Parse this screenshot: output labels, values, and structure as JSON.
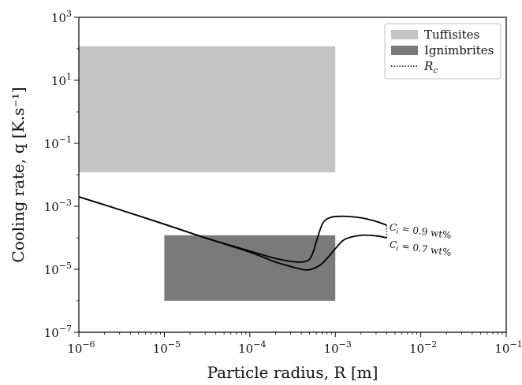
{
  "chart_data": {
    "type": "line",
    "xlabel": "Particle radius, R [m]",
    "ylabel": "Cooling rate, q [K.s⁻¹]",
    "xscale": "log",
    "yscale": "log",
    "xlim": [
      1e-06,
      0.1
    ],
    "ylim": [
      1e-07,
      1000
    ],
    "grid": false,
    "legend_position": "top-right",
    "x_ticks": [
      {
        "value": 1e-06,
        "base": "10",
        "exp": "−6"
      },
      {
        "value": 1e-05,
        "base": "10",
        "exp": "−5"
      },
      {
        "value": 0.0001,
        "base": "10",
        "exp": "−4"
      },
      {
        "value": 0.001,
        "base": "10",
        "exp": "−3"
      },
      {
        "value": 0.01,
        "base": "10",
        "exp": "−2"
      },
      {
        "value": 0.1,
        "base": "10",
        "exp": "−1"
      }
    ],
    "y_ticks": [
      {
        "value": 1e-07,
        "base": "10",
        "exp": "−7"
      },
      {
        "value": 1e-05,
        "base": "10",
        "exp": "−5"
      },
      {
        "value": 0.001,
        "base": "10",
        "exp": "−3"
      },
      {
        "value": 0.1,
        "base": "10",
        "exp": "−1"
      },
      {
        "value": 10,
        "base": "10",
        "exp": "1"
      },
      {
        "value": 1000,
        "base": "10",
        "exp": "3"
      }
    ],
    "regions": [
      {
        "name": "Tuffisites",
        "x": [
          1e-06,
          0.001
        ],
        "y": [
          0.012,
          120
        ],
        "color": "#c4c4c4"
      },
      {
        "name": "Ignimbrites",
        "x": [
          1e-05,
          0.001
        ],
        "y": [
          1e-06,
          0.00012
        ],
        "color": "#7a7a7a"
      }
    ],
    "series": [
      {
        "name": "C_i = 0.9 wt%",
        "color": "#000000",
        "points": [
          [
            1e-06,
            0.002
          ],
          [
            3e-06,
            0.00078
          ],
          [
            1e-05,
            0.00027
          ],
          [
            3e-05,
            0.0001
          ],
          [
            0.0001,
            3.8e-05
          ],
          [
            0.0002,
            2.2e-05
          ],
          [
            0.00035,
            1.7e-05
          ],
          [
            0.00048,
            1.9e-05
          ],
          [
            0.00055,
            3.5e-05
          ],
          [
            0.00062,
            0.0001
          ],
          [
            0.00072,
            0.0003
          ],
          [
            0.0009,
            0.00045
          ],
          [
            0.0013,
            0.00048
          ],
          [
            0.002,
            0.00043
          ],
          [
            0.003,
            0.00033
          ],
          [
            0.004,
            0.00025
          ]
        ]
      },
      {
        "name": "C_i = 0.7 wt%",
        "color": "#000000",
        "points": [
          [
            1e-06,
            0.002
          ],
          [
            3e-06,
            0.00078
          ],
          [
            1e-05,
            0.00027
          ],
          [
            3e-05,
            0.0001
          ],
          [
            0.0001,
            3.5e-05
          ],
          [
            0.0002,
            1.7e-05
          ],
          [
            0.00035,
            1.1e-05
          ],
          [
            0.00048,
            9.5e-06
          ],
          [
            0.00065,
            1.3e-05
          ],
          [
            0.0008,
            2.2e-05
          ],
          [
            0.001,
            4.5e-05
          ],
          [
            0.0013,
            9e-05
          ],
          [
            0.002,
            0.00012
          ],
          [
            0.003,
            0.000115
          ],
          [
            0.004,
            0.0001
          ]
        ]
      }
    ],
    "rc_line": {
      "x": 0.004,
      "y": [
        0.0001,
        0.00025
      ]
    },
    "legend": [
      {
        "label": "Tuffisites",
        "kind": "patch",
        "color": "#c4c4c4"
      },
      {
        "label": "Ignimbrites",
        "kind": "patch",
        "color": "#7a7a7a"
      },
      {
        "label": "R",
        "subscript": "c",
        "kind": "dotted-line",
        "color": "#000000"
      }
    ],
    "annotations": [
      {
        "text": "C",
        "subscript": "i",
        "rest": " = 0.9 wt%",
        "x": 0.004,
        "y": 0.00025
      },
      {
        "text": "C",
        "subscript": "i",
        "rest": " = 0.7 wt%",
        "x": 0.004,
        "y": 0.0001
      }
    ]
  }
}
